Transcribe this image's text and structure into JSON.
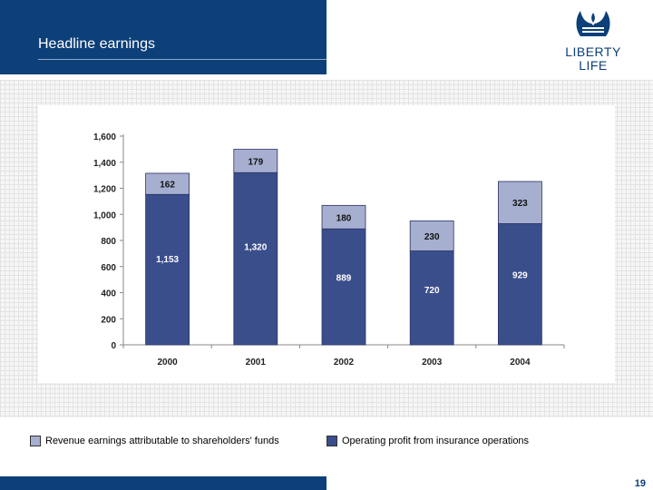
{
  "header": {
    "title": "Headline earnings"
  },
  "logo": {
    "line1": "LIBERTY",
    "line2": "LIFE"
  },
  "page_number": "19",
  "colors": {
    "brand": "#0d3f78",
    "operating": "#3b4e8c",
    "revenue": "#a6afd0"
  },
  "chart_data": {
    "type": "bar",
    "stacked": true,
    "categories": [
      "2000",
      "2001",
      "2002",
      "2003",
      "2004"
    ],
    "series": [
      {
        "name": "Operating profit from insurance operations",
        "values": [
          1153,
          1320,
          889,
          720,
          929
        ],
        "labels": [
          "1,153",
          "1,320",
          "889",
          "720",
          "929"
        ],
        "color": "#3b4e8c"
      },
      {
        "name": "Revenue earnings attributable to shareholders' funds",
        "values": [
          162,
          179,
          180,
          230,
          323
        ],
        "labels": [
          "162",
          "179",
          "180",
          "230",
          "323"
        ],
        "color": "#a6afd0"
      }
    ],
    "ylim": [
      0,
      1600
    ],
    "yticks": [
      0,
      200,
      400,
      600,
      800,
      1000,
      1200,
      1400,
      1600
    ],
    "ytick_labels": [
      "0",
      "200",
      "400",
      "600",
      "800",
      "1,000",
      "1,200",
      "1,400",
      "1,600"
    ],
    "grid": false,
    "legend_placement": "bottom"
  },
  "legend": [
    {
      "label": "Revenue earnings attributable to shareholders' funds",
      "color": "#a6afd0"
    },
    {
      "label": "Operating profit from insurance operations",
      "color": "#3b4e8c"
    }
  ]
}
